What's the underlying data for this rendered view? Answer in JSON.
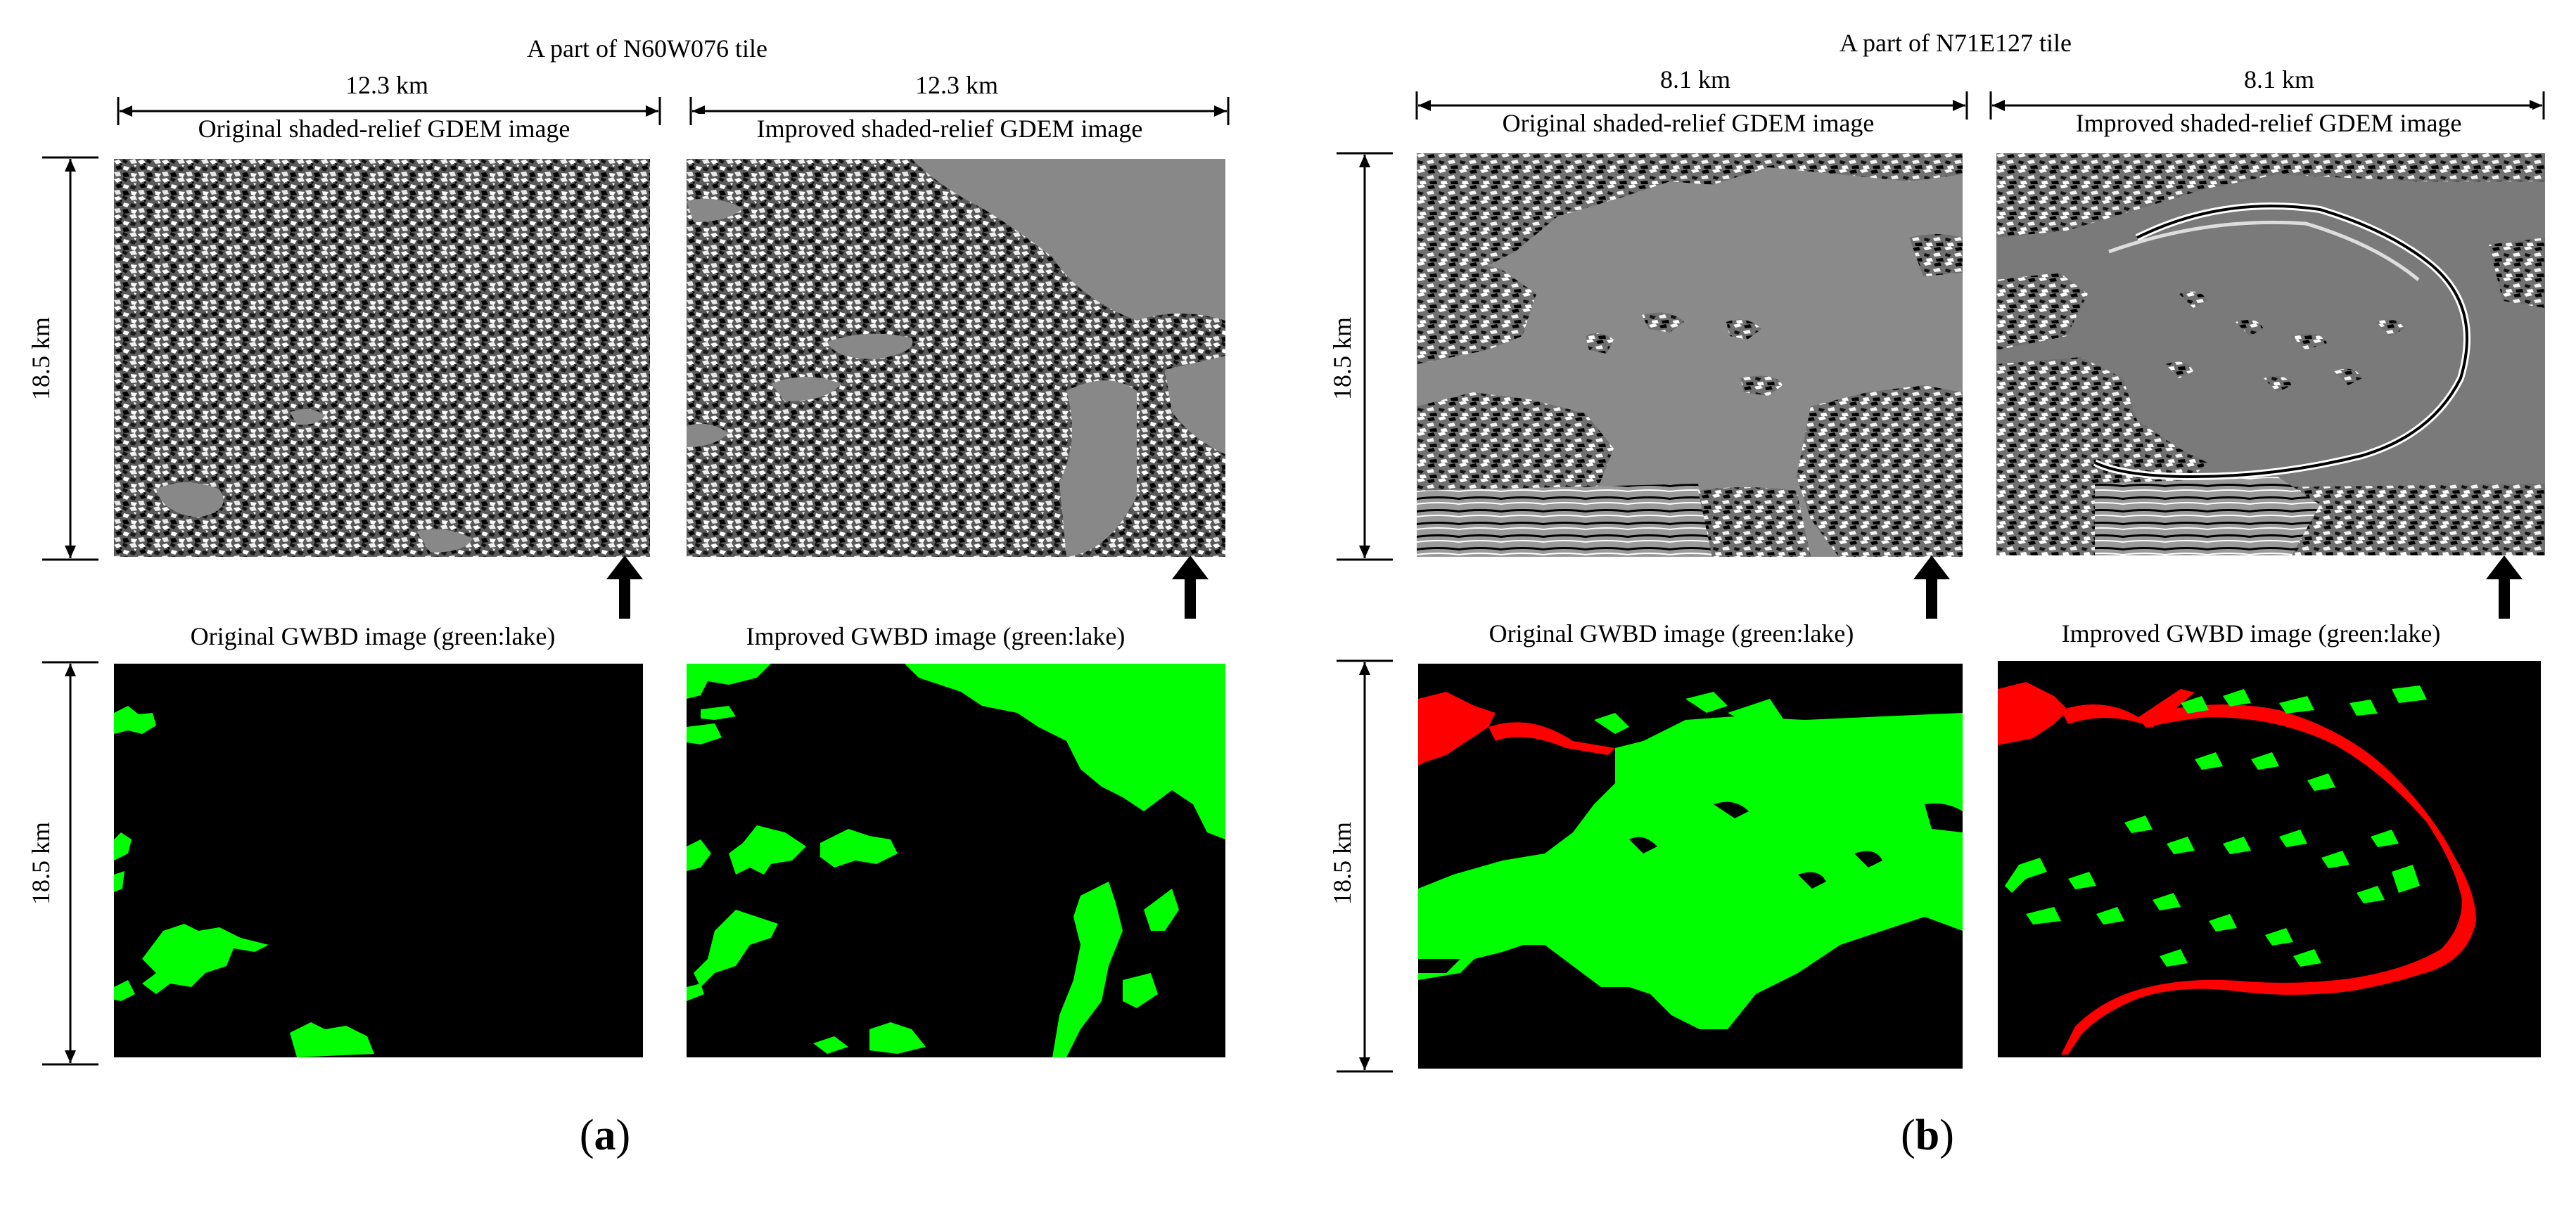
{
  "colors": {
    "lake": "#00ff00",
    "river": "#ff0000",
    "land": "#000000",
    "shade_bg": "#888888"
  },
  "panel_a": {
    "title": "A part of N60W076 tile",
    "width_label_left": "12.3 km",
    "width_label_right": "12.3 km",
    "height_label_top": "18.5 km",
    "height_label_bottom": "18.5 km",
    "captions": {
      "orig_gdem": "Original shaded-relief GDEM image",
      "impr_gdem": "Improved shaded-relief GDEM image",
      "orig_gwbd": "Original GWBD image (green:lake)",
      "impr_gwbd": "Improved GWBD image (green:lake)"
    },
    "label_open": "(",
    "label_letter": "a",
    "label_close": ")"
  },
  "panel_b": {
    "title": "A part of N71E127 tile",
    "width_label_left": "8.1 km",
    "width_label_right": "8.1 km",
    "height_label_top": "18.5 km",
    "height_label_bottom": "18.5 km",
    "captions": {
      "orig_gdem": "Original shaded-relief GDEM image",
      "impr_gdem": "Improved shaded-relief GDEM image",
      "orig_gwbd": "Original GWBD image (green:lake)",
      "impr_gwbd": "Improved GWBD image (green:lake)"
    },
    "label_open": "(",
    "label_letter": "b",
    "label_close": ")"
  }
}
